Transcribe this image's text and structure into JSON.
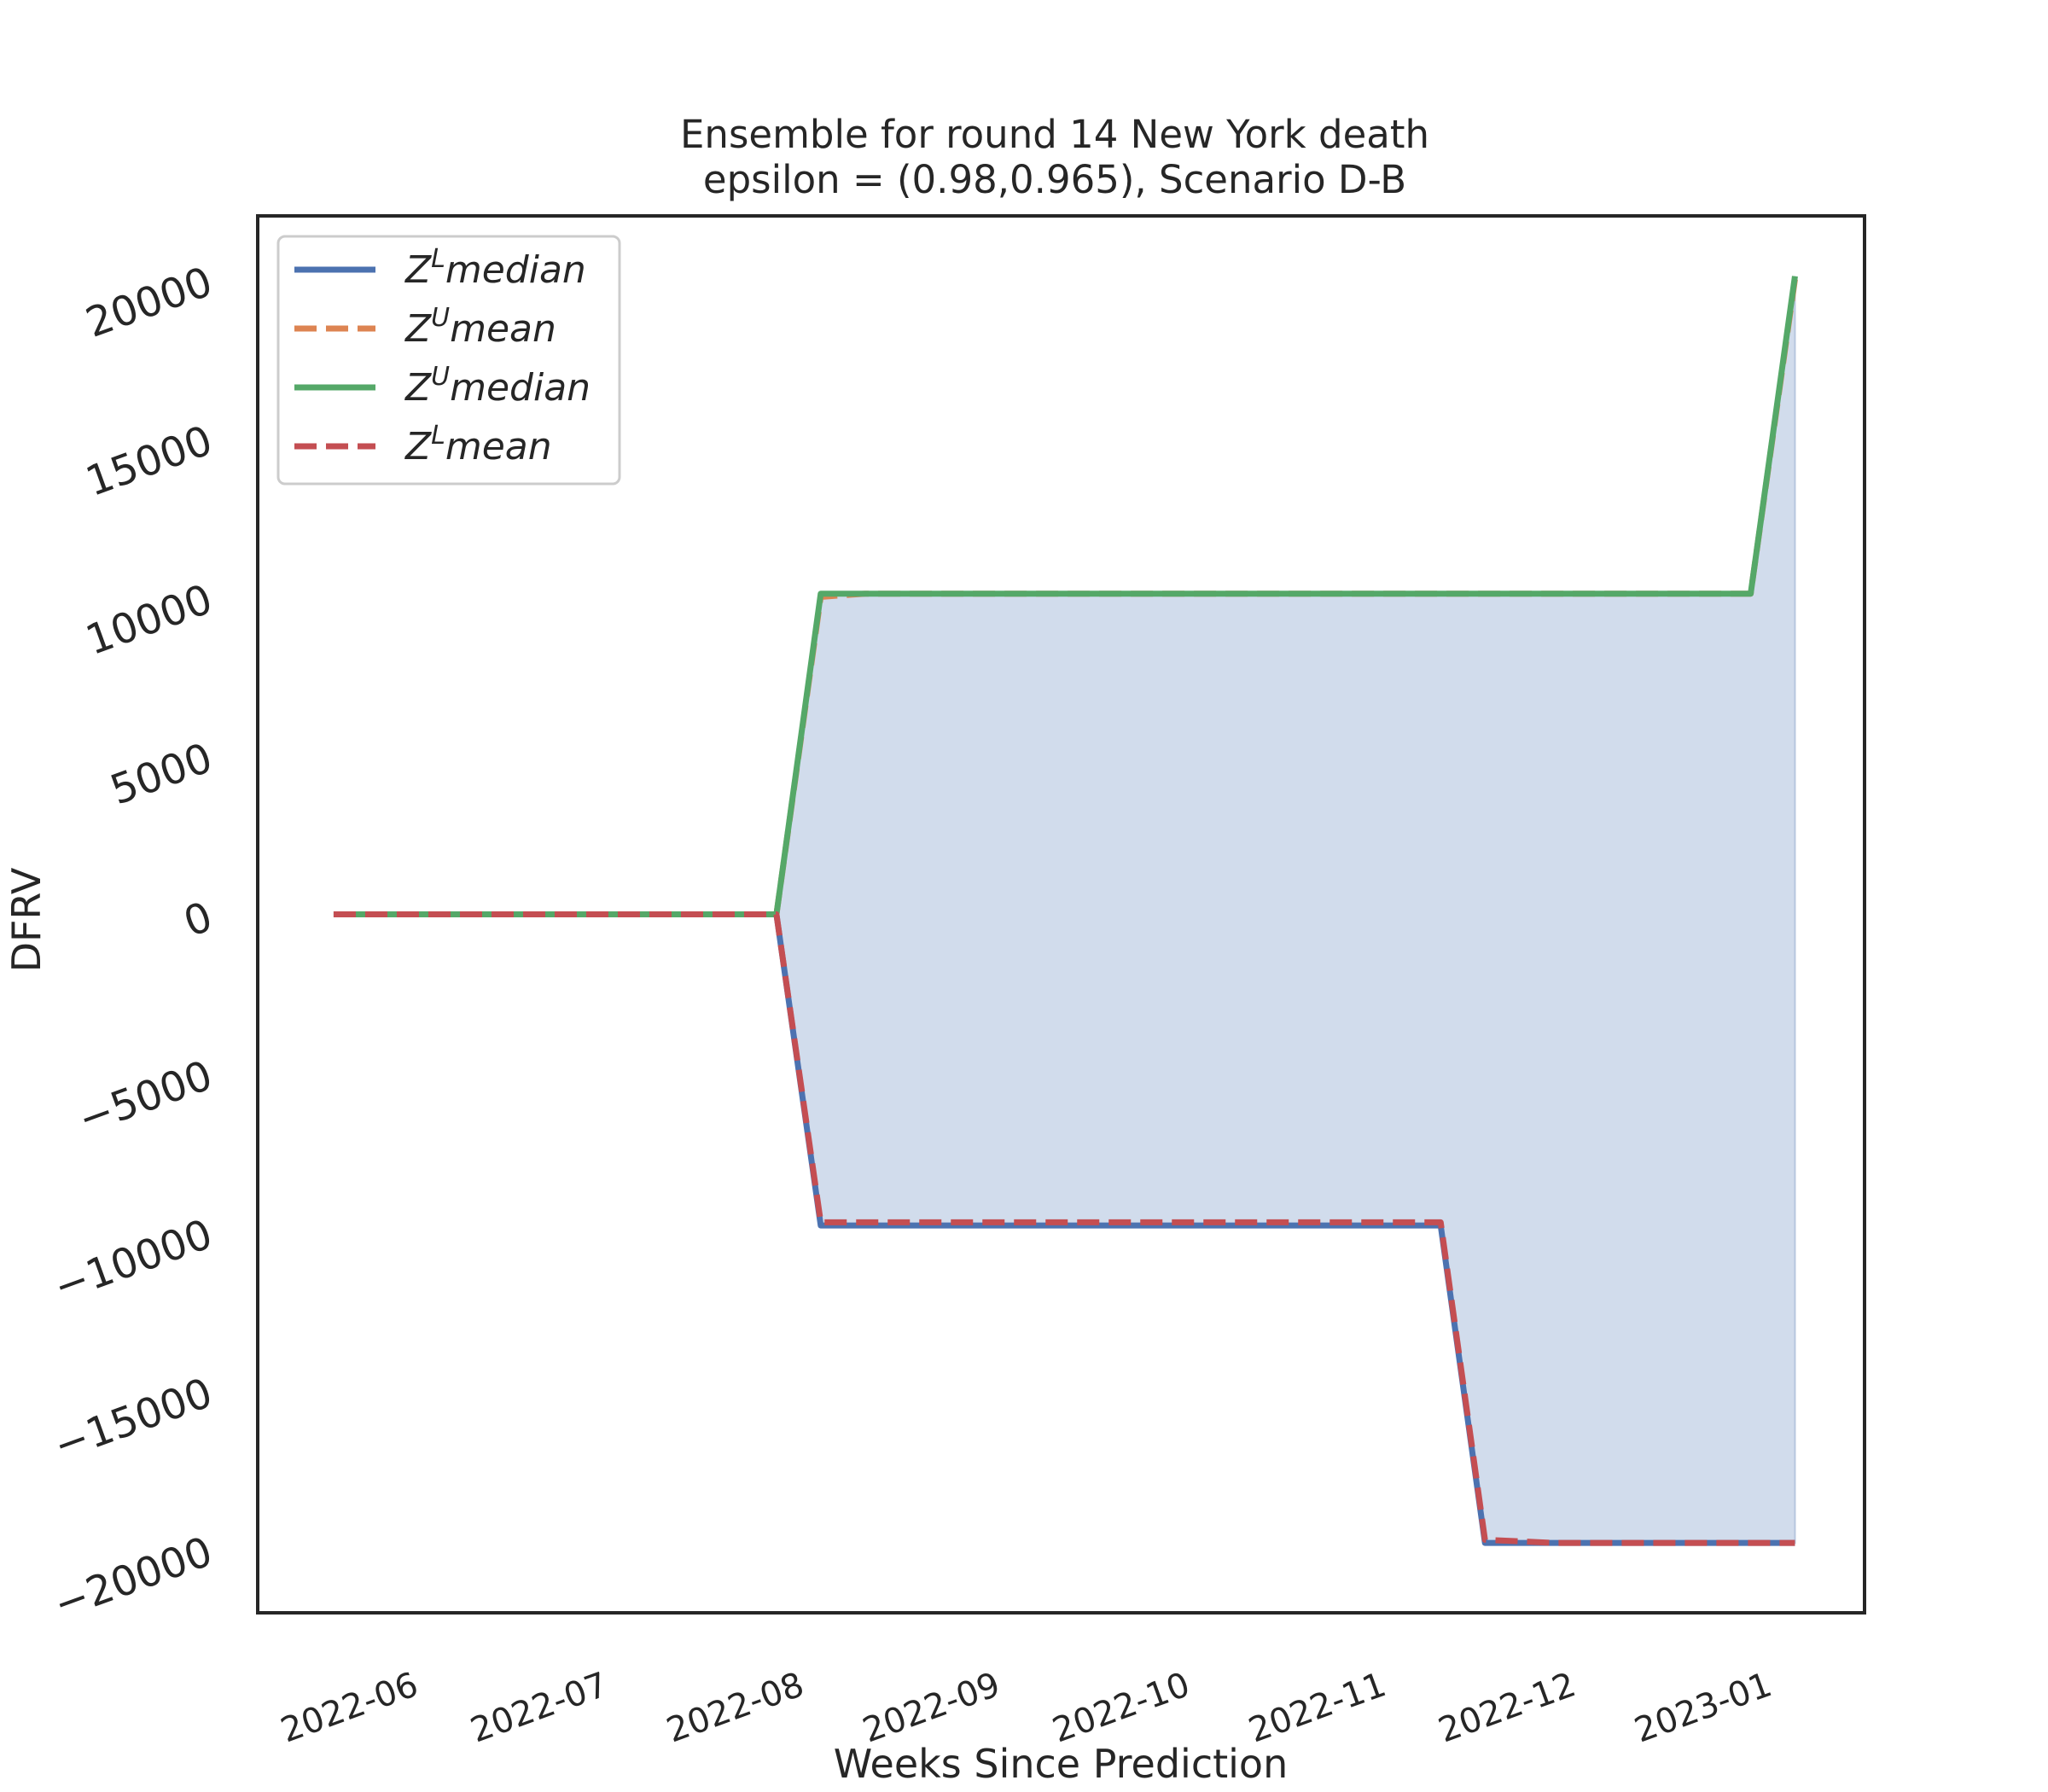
{
  "chart_data": {
    "type": "line",
    "title": "Ensemble for round 14 New York  death",
    "subtitle": "epsilon = (0.98,0.965), Scenario D-B",
    "xlabel": "Weeks Since Prediction",
    "ylabel": "DFRV",
    "ylim": [
      -22000,
      22000
    ],
    "yticks": [
      20000,
      15000,
      10000,
      5000,
      0,
      -5000,
      -10000,
      -15000,
      -20000
    ],
    "ytick_labels": [
      "20000",
      "15000",
      "10000",
      "5000",
      "0",
      "−5000",
      "−10000",
      "−15000",
      "−20000"
    ],
    "xlim": [
      "2022-05-09",
      "2023-01-18"
    ],
    "xticks": [
      "2022-06-01",
      "2022-07-01",
      "2022-08-01",
      "2022-09-01",
      "2022-10-01",
      "2022-11-01",
      "2022-12-01",
      "2023-01-01"
    ],
    "xtick_labels": [
      "2022-06",
      "2022-07",
      "2022-08",
      "2022-09",
      "2022-10",
      "2022-11",
      "2022-12",
      "2023-01"
    ],
    "grid": false,
    "legend_position": "top-left",
    "fill_between": {
      "lower": "Z^L median",
      "upper": "Z^U median",
      "color": "#c6d3e7"
    },
    "series": [
      {
        "name": "Z^L median",
        "legend_base": "Z",
        "legend_sup": "L",
        "legend_rest": "median",
        "style": "solid",
        "color": "#4c72b0",
        "points": [
          [
            "2022-05-21",
            0
          ],
          [
            "2022-07-30",
            0
          ],
          [
            "2022-08-06",
            -9800
          ],
          [
            "2022-10-22",
            -9800
          ],
          [
            "2022-11-12",
            -9800
          ],
          [
            "2022-11-19",
            -19800
          ],
          [
            "2022-12-31",
            -19800
          ],
          [
            "2023-01-07",
            -19800
          ]
        ]
      },
      {
        "name": "Z^U mean",
        "legend_base": "Z",
        "legend_sup": "U",
        "legend_rest": "mean",
        "style": "dashed",
        "color": "#dd8452",
        "points": [
          [
            "2022-05-21",
            0
          ],
          [
            "2022-07-30",
            0
          ],
          [
            "2022-08-06",
            10000
          ],
          [
            "2022-08-13",
            10100
          ],
          [
            "2022-12-31",
            10100
          ],
          [
            "2023-01-07",
            20000
          ]
        ]
      },
      {
        "name": "Z^U median",
        "legend_base": "Z",
        "legend_sup": "U",
        "legend_rest": "median",
        "style": "solid",
        "color": "#55a868",
        "points": [
          [
            "2022-05-21",
            0
          ],
          [
            "2022-07-30",
            0
          ],
          [
            "2022-08-06",
            10100
          ],
          [
            "2022-12-31",
            10100
          ],
          [
            "2023-01-07",
            20100
          ]
        ]
      },
      {
        "name": "Z^L mean",
        "legend_base": "Z",
        "legend_sup": "L",
        "legend_rest": "mean",
        "style": "dashed",
        "color": "#c44e52",
        "points": [
          [
            "2022-05-21",
            0
          ],
          [
            "2022-07-30",
            0
          ],
          [
            "2022-08-06",
            -9700
          ],
          [
            "2022-11-12",
            -9700
          ],
          [
            "2022-11-19",
            -19700
          ],
          [
            "2022-11-30",
            -19800
          ],
          [
            "2023-01-07",
            -19800
          ]
        ]
      }
    ]
  }
}
